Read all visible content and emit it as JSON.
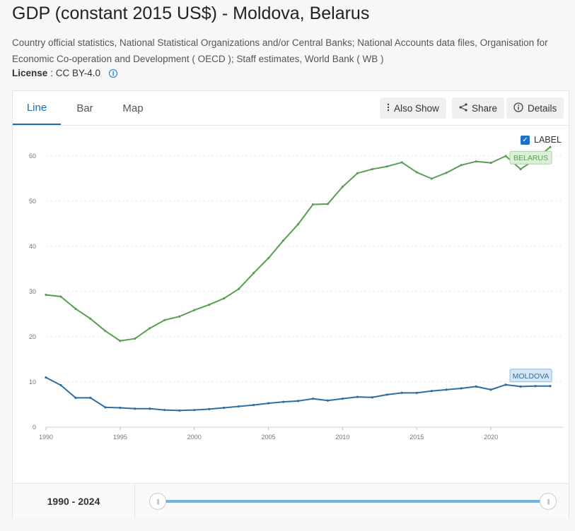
{
  "page": {
    "title": "GDP (constant 2015 US$) - Moldova, Belarus",
    "source": "Country official statistics, National Statistical Organizations and/or Central Banks; National Accounts data files, Organisation for Economic Co-operation and Development ( OECD ); Staff estimates, World Bank ( WB )",
    "license_label": "License",
    "license_value": ": CC BY-4.0",
    "info_icon": "info-icon"
  },
  "tabs": [
    {
      "label": "Line"
    },
    {
      "label": "Bar"
    },
    {
      "label": "Map"
    }
  ],
  "toolbar": {
    "also_show": "Also Show",
    "share": "Share",
    "details": "Details"
  },
  "label_toggle": "LABEL",
  "footer": {
    "range": "1990 - 2024",
    "slider_start": 1990,
    "slider_end": 2024
  },
  "colors": {
    "belarus": "#5a9e54",
    "moldova": "#2a6ea5",
    "accent": "#1a6fb0"
  },
  "chart_data": {
    "type": "line",
    "x": [
      1990,
      1991,
      1992,
      1993,
      1994,
      1995,
      1996,
      1997,
      1998,
      1999,
      2000,
      2001,
      2002,
      2003,
      2004,
      2005,
      2006,
      2007,
      2008,
      2009,
      2010,
      2011,
      2012,
      2013,
      2014,
      2015,
      2016,
      2017,
      2018,
      2019,
      2020,
      2021,
      2022,
      2023,
      2024
    ],
    "series": [
      {
        "name": "BELARUS",
        "values": [
          29.3,
          28.9,
          26.2,
          24.0,
          21.3,
          19.1,
          19.6,
          21.9,
          23.7,
          24.5,
          25.9,
          27.1,
          28.5,
          30.6,
          34.1,
          37.4,
          41.3,
          44.9,
          49.3,
          49.4,
          53.2,
          56.2,
          57.1,
          57.7,
          58.6,
          56.4,
          55.0,
          56.3,
          58.0,
          58.8,
          58.5,
          60.0,
          57.1,
          59.3,
          62.0
        ]
      },
      {
        "name": "MOLDOVA",
        "values": [
          11.0,
          9.3,
          6.5,
          6.5,
          4.4,
          4.3,
          4.1,
          4.1,
          3.8,
          3.7,
          3.8,
          4.0,
          4.3,
          4.6,
          4.9,
          5.3,
          5.6,
          5.8,
          6.3,
          5.9,
          6.3,
          6.7,
          6.6,
          7.2,
          7.6,
          7.6,
          8.0,
          8.3,
          8.6,
          9.0,
          8.3,
          9.4,
          9.0,
          9.1,
          9.1
        ]
      }
    ],
    "xticks": [
      1990,
      1995,
      2000,
      2005,
      2010,
      2015,
      2020
    ],
    "yticks": [
      0,
      10,
      20,
      30,
      40,
      50,
      60
    ],
    "ylim": [
      0,
      65
    ],
    "xlim": [
      1990,
      2024
    ],
    "grid": true,
    "title": "GDP (constant 2015 US$) - Moldova, Belarus"
  }
}
